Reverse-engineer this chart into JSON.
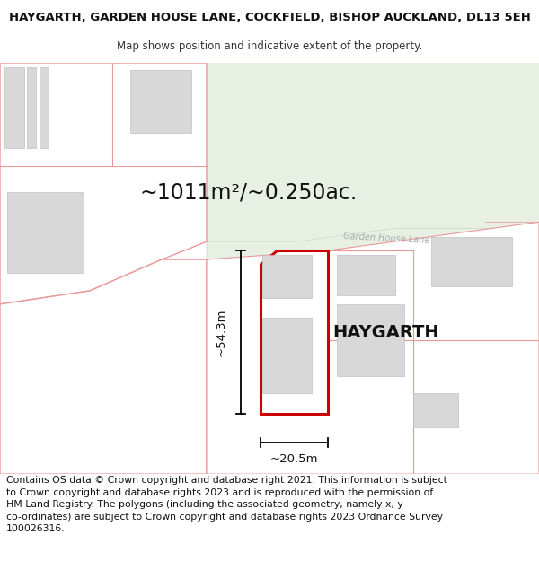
{
  "title": "HAYGARTH, GARDEN HOUSE LANE, COCKFIELD, BISHOP AUCKLAND, DL13 5EH",
  "subtitle": "Map shows position and indicative extent of the property.",
  "area_label": "~1011m²/~0.250ac.",
  "height_label": "~54.3m",
  "width_label": "~20.5m",
  "property_label": "HAYGARTH",
  "road_label": "Garden House Lane",
  "copyright_text": "Contains OS data © Crown copyright and database right 2021. This information is subject\nto Crown copyright and database rights 2023 and is reproduced with the permission of\nHM Land Registry. The polygons (including the associated geometry, namely x, y\nco-ordinates) are subject to Crown copyright and database rights 2023 Ordnance Survey\n100026316.",
  "map_bg": "#ffffff",
  "green_field_color": "#e8f0e4",
  "road_color": "#e8f0e4",
  "road_outline_color": "#c8d8c0",
  "property_fill": "#ffffff",
  "property_outline": "#cc0000",
  "plot_outline_color": "#e89898",
  "building_fill": "#d8d8d8",
  "building_outline": "#c0c0c0",
  "title_fontsize": 9.5,
  "subtitle_fontsize": 8.5,
  "copyright_fontsize": 7.8,
  "area_fontsize": 17,
  "dim_fontsize": 9.5,
  "prop_label_fontsize": 14,
  "road_label_fontsize": 7
}
